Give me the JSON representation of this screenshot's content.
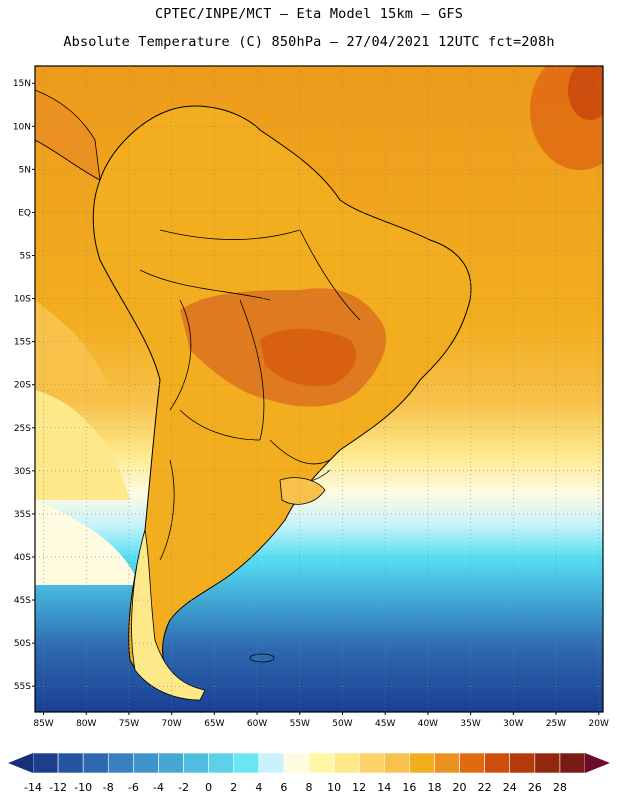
{
  "header": {
    "line1": "CPTEC/INPE/MCT –  Eta Model 15km – GFS",
    "line2": "Absolute Temperature (C) 850hPa – 27/04/2021 12UTC fct=208h"
  },
  "axes": {
    "lat_labels": [
      "15N",
      "10N",
      "5N",
      "EQ",
      "5S",
      "10S",
      "15S",
      "20S",
      "25S",
      "30S",
      "35S",
      "40S",
      "45S",
      "50S",
      "55S"
    ],
    "lat_values": [
      15,
      10,
      5,
      0,
      -5,
      -10,
      -15,
      -20,
      -25,
      -30,
      -35,
      -40,
      -45,
      -50,
      -55
    ],
    "lon_labels": [
      "85W",
      "80W",
      "75W",
      "70W",
      "65W",
      "60W",
      "55W",
      "50W",
      "45W",
      "40W",
      "35W",
      "30W",
      "25W",
      "20W"
    ],
    "lon_values": [
      -85,
      -80,
      -75,
      -70,
      -65,
      -60,
      -55,
      -50,
      -45,
      -40,
      -35,
      -30,
      -25,
      -20
    ],
    "lat_range": [
      -58,
      17
    ],
    "lon_range": [
      -86,
      -19.5
    ]
  },
  "colorbar": {
    "unit": "C",
    "labels": [
      "-14",
      "-12",
      "-10",
      "-8",
      "-6",
      "-4",
      "-2",
      "0",
      "2",
      "4",
      "6",
      "8",
      "10",
      "12",
      "14",
      "16",
      "18",
      "20",
      "22",
      "24",
      "26",
      "28"
    ],
    "colors": [
      "#1c3f8c",
      "#2456a0",
      "#2e6ab0",
      "#3a7fc0",
      "#3f95cb",
      "#45a8d3",
      "#4fbde0",
      "#5bd2ea",
      "#6ae6f3",
      "#c9f3fb",
      "#fffbe0",
      "#fff7a3",
      "#fde88a",
      "#fbd36a",
      "#f7c14a",
      "#f2ae1e",
      "#ea9121",
      "#e06a12",
      "#cc4d0c",
      "#b23a0b",
      "#93270b",
      "#7a1a17"
    ],
    "under_color": "#1a2f7a",
    "over_color": "#6b0a2a"
  },
  "map_fields": {
    "ocean_gradient": [
      "#1a3f94",
      "#2e6ab0",
      "#40a6d4",
      "#58dff2",
      "#c9f3fb",
      "#fffbe0",
      "#fde88a",
      "#f7c14a",
      "#f2ae1e"
    ],
    "continent_fill": "#f2ae1e",
    "warm_core_fill": "#e07a1e",
    "hot_spot_fill": "#cc4d0c"
  }
}
